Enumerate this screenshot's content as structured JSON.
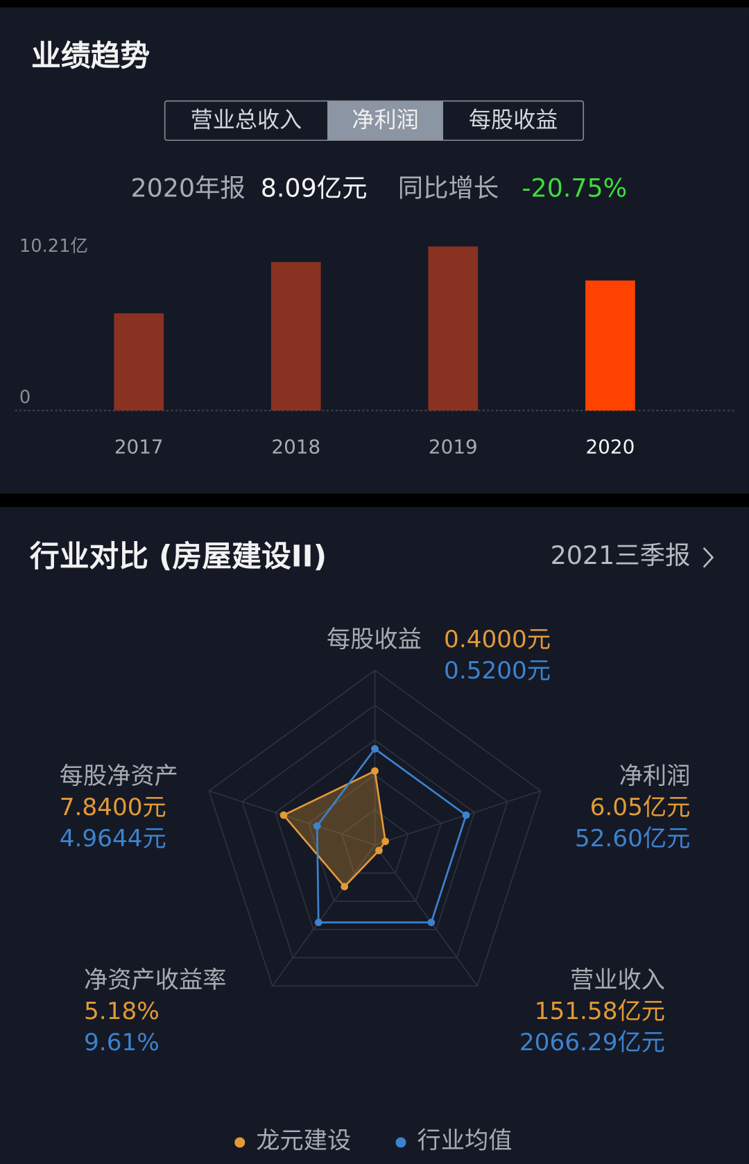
{
  "tabs": [
    "营业总收入",
    "净利润",
    "每股收益"
  ],
  "active_tab": 1,
  "summary": {
    "period": "2020年报",
    "value": "8.09亿元",
    "growth_label": "同比增长",
    "growth": "-20.75%"
  },
  "chart_data": [
    {
      "type": "bar",
      "title": "业绩趋势",
      "categories": [
        "2017",
        "2018",
        "2019",
        "2020"
      ],
      "values": [
        6.05,
        9.24,
        10.21,
        8.09
      ],
      "ylim": [
        0,
        10.21
      ],
      "yticks": [
        0,
        {
          "value": 10.21,
          "label": "10.21亿"
        }
      ],
      "color": "#8a3221",
      "highlight_color": "#ff4200",
      "highlight_index": 3
    },
    {
      "type": "radar",
      "title": "行业对比 (房屋建设II)",
      "period": "2021三季报",
      "indicators": [
        "每股收益",
        "净利润",
        "营业收入",
        "净资产收益率",
        "每股净资产"
      ],
      "series": [
        {
          "name": "龙元建设",
          "color": "#e39a36",
          "values": [
            0.4,
            6.05,
            151.58,
            5.18,
            7.84
          ],
          "value_labels": [
            "0.4000元",
            "6.05亿元",
            "151.58亿元",
            "5.18%",
            "7.8400元"
          ]
        },
        {
          "name": "行业均值",
          "color": "#3d82cf",
          "values": [
            0.52,
            52.6,
            2066.29,
            9.61,
            4.9644
          ],
          "value_labels": [
            "0.5200元",
            "52.60亿元",
            "2066.29亿元",
            "9.61%",
            "4.9644元"
          ]
        }
      ]
    }
  ]
}
